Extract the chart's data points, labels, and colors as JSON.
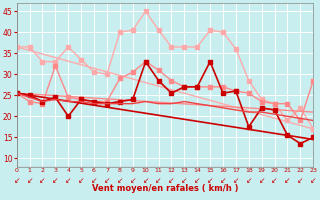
{
  "background_color": "#c8eef0",
  "grid_color": "#ffffff",
  "xlabel": "Vent moyen/en rafales ( km/h )",
  "xlabel_color": "#cc0000",
  "tick_color": "#cc0000",
  "yticks": [
    10,
    15,
    20,
    25,
    30,
    35,
    40,
    45
  ],
  "xticks": [
    0,
    1,
    2,
    3,
    4,
    5,
    6,
    7,
    8,
    9,
    10,
    11,
    12,
    13,
    14,
    15,
    16,
    17,
    18,
    19,
    20,
    21,
    22,
    23
  ],
  "xlim": [
    0,
    23
  ],
  "ylim": [
    8,
    47
  ],
  "series": [
    {
      "x": [
        0,
        1,
        2,
        3,
        4,
        5,
        6,
        7,
        8,
        9,
        10,
        11,
        12,
        13,
        14,
        15,
        16,
        17,
        18,
        19,
        20,
        21,
        22,
        23
      ],
      "y": [
        36.5,
        36.5,
        33.0,
        33.0,
        36.5,
        33.5,
        30.5,
        30.0,
        40.0,
        40.5,
        45.0,
        40.5,
        36.5,
        36.5,
        36.5,
        40.5,
        40.0,
        36.0,
        28.5,
        24.0,
        23.0,
        19.0,
        22.0,
        17.0
      ],
      "color": "#ffaaaa",
      "marker": "s",
      "markersize": 2.5,
      "linewidth": 1.0
    },
    {
      "x": [
        0,
        23
      ],
      "y": [
        36.5,
        17.0
      ],
      "color": "#ffaaaa",
      "marker": null,
      "markersize": 0,
      "linewidth": 1.0
    },
    {
      "x": [
        0,
        1,
        2,
        3,
        4,
        5,
        6,
        7,
        8,
        9,
        10,
        11,
        12,
        13,
        14,
        15,
        16,
        17,
        18,
        19,
        20,
        21,
        22,
        23
      ],
      "y": [
        25.5,
        23.5,
        23.0,
        32.0,
        24.5,
        24.0,
        23.5,
        23.5,
        29.0,
        30.5,
        33.0,
        31.0,
        28.5,
        27.0,
        27.0,
        27.0,
        27.0,
        26.0,
        25.5,
        23.5,
        23.0,
        23.0,
        19.0,
        28.5
      ],
      "color": "#ff8888",
      "marker": "s",
      "markersize": 2.5,
      "linewidth": 1.0
    },
    {
      "x": [
        0,
        23
      ],
      "y": [
        25.5,
        21.0
      ],
      "color": "#ff8888",
      "marker": null,
      "markersize": 0,
      "linewidth": 1.0
    },
    {
      "x": [
        0,
        1,
        2,
        3,
        4,
        5,
        6,
        7,
        8,
        9,
        10,
        11,
        12,
        13,
        14,
        15,
        16,
        17,
        18,
        19,
        20,
        21,
        22,
        23
      ],
      "y": [
        25.5,
        25.0,
        23.5,
        24.5,
        20.0,
        24.0,
        23.5,
        23.0,
        23.5,
        24.0,
        33.0,
        28.5,
        25.5,
        27.0,
        27.0,
        33.0,
        25.5,
        26.0,
        17.5,
        22.0,
        21.5,
        15.5,
        13.5,
        15.0
      ],
      "color": "#cc0000",
      "marker": "s",
      "markersize": 2.5,
      "linewidth": 1.2
    },
    {
      "x": [
        0,
        23
      ],
      "y": [
        25.5,
        14.5
      ],
      "color": "#cc0000",
      "marker": null,
      "markersize": 0,
      "linewidth": 1.2
    },
    {
      "x": [
        0,
        1,
        2,
        3,
        4,
        5,
        6,
        7,
        8,
        9,
        10,
        11,
        12,
        13,
        14,
        15,
        16,
        17,
        18,
        19,
        20,
        21,
        22,
        23
      ],
      "y": [
        25.5,
        24.5,
        23.5,
        24.0,
        23.5,
        23.5,
        23.0,
        23.0,
        23.0,
        23.0,
        23.5,
        23.0,
        23.0,
        23.5,
        23.0,
        22.5,
        22.0,
        21.5,
        21.0,
        21.0,
        20.5,
        20.0,
        19.5,
        19.0
      ],
      "color": "#ee4444",
      "marker": null,
      "markersize": 0,
      "linewidth": 1.0
    }
  ],
  "arrow_symbol": "↙",
  "arrow_color": "#cc0000",
  "arrow_fontsize": 5.5
}
